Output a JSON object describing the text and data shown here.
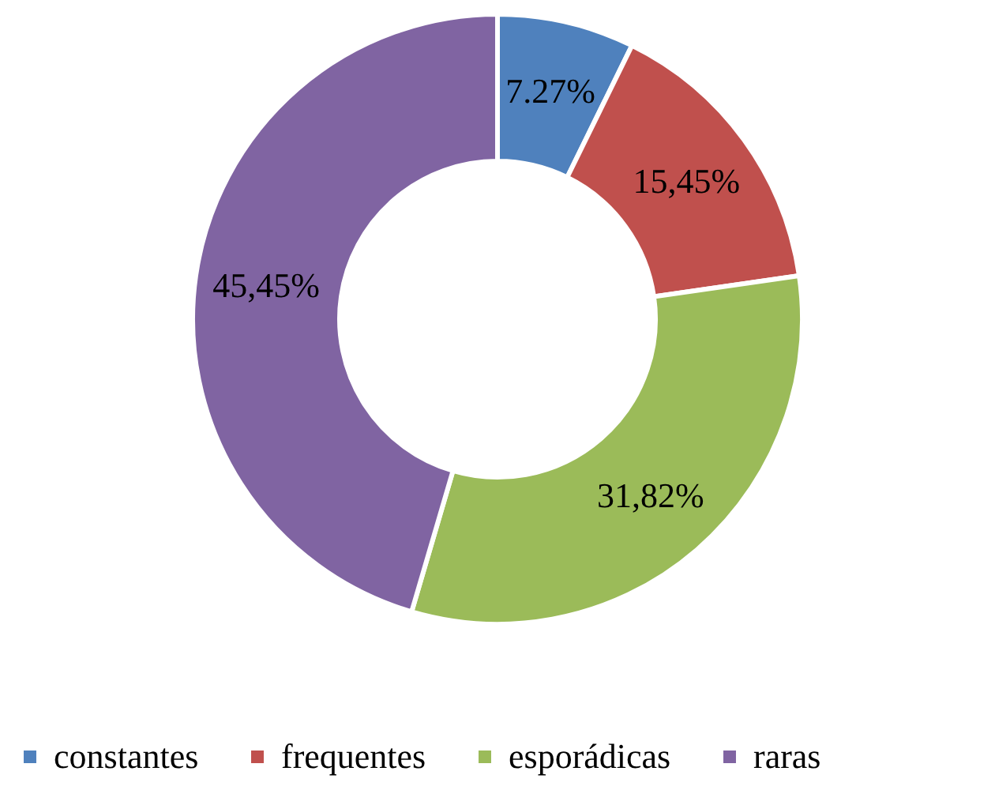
{
  "chart_data": {
    "type": "donut",
    "categories": [
      "constantes",
      "frequentes",
      "esporádicas",
      "raras"
    ],
    "values": [
      7.27,
      15.45,
      31.82,
      45.45
    ],
    "value_labels": [
      "7.27%",
      "15,45%",
      "31,82%",
      "45,45%"
    ],
    "colors": [
      "#4f81bd",
      "#c0504d",
      "#9bbb59",
      "#8064a2"
    ],
    "legend": "bottom"
  }
}
